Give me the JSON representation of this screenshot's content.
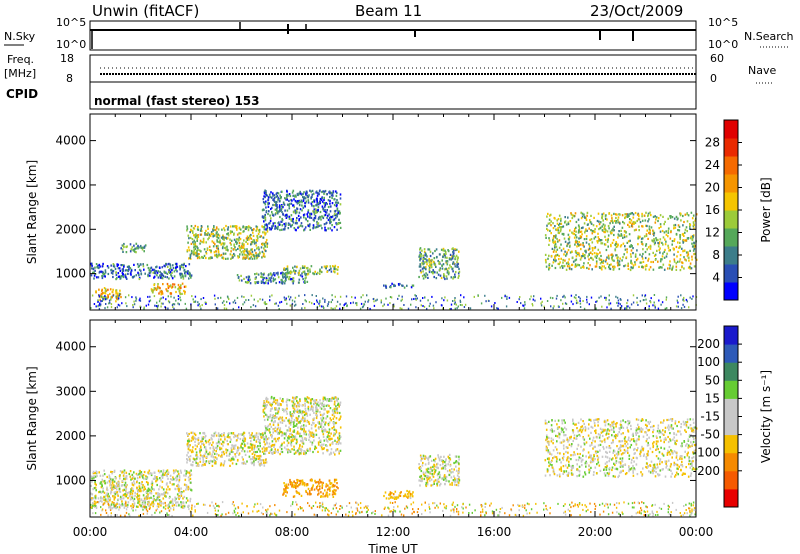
{
  "header": {
    "station": "Unwin (fitACF)",
    "beam": "Beam 11",
    "date": "23/Oct/2009"
  },
  "panels": {
    "sky_label": "N.Sky",
    "sky_ticks": [
      "10^5",
      "10^0"
    ],
    "search_label": "N.Search",
    "search_ticks": [
      "10^5",
      "10^0"
    ],
    "freq_label": "Freq.",
    "freq_unit": "[MHz]",
    "freq_ticks": [
      "18",
      "8"
    ],
    "nave_label": "Nave",
    "nave_ticks": [
      "60",
      "0"
    ],
    "cpid_label": "CPID",
    "cpid_text": "normal (fast stereo) 153"
  },
  "colors": {
    "power": [
      "#0000ff",
      "#2a4fb5",
      "#3c7d8a",
      "#55a85a",
      "#9ccb3a",
      "#f5c500",
      "#f59500",
      "#f56a00",
      "#ea2a00",
      "#e00000"
    ],
    "velocity": [
      "#1a1acc",
      "#2e5ab8",
      "#3d8860",
      "#66cc33",
      "#c8c8c8",
      "#c8c8c8",
      "#f5c000",
      "#f58a00",
      "#f55a00",
      "#e80000"
    ]
  },
  "chart_data": [
    {
      "type": "heatmap",
      "name": "power",
      "xlabel": "Time UT",
      "ylabel": "Slant Range [km]",
      "x_ticks": [
        "00:00",
        "04:00",
        "08:00",
        "12:00",
        "16:00",
        "20:00",
        "00:00"
      ],
      "xlim": [
        0,
        24
      ],
      "ylim": [
        180,
        4600
      ],
      "y_ticks": [
        1000,
        2000,
        3000,
        4000
      ],
      "colorbar_label": "Power [dB]",
      "colorbar_ticks": [
        4,
        8,
        12,
        16,
        20,
        24,
        28
      ],
      "colorbar_range": [
        0,
        32
      ],
      "regions": [
        {
          "t": [
            0.2,
            1.2
          ],
          "r": [
            400,
            700
          ],
          "p": 18
        },
        {
          "t": [
            0.0,
            4.0
          ],
          "r": [
            900,
            1250
          ],
          "p": 6
        },
        {
          "t": [
            1.2,
            2.2
          ],
          "r": [
            1500,
            1700
          ],
          "p": 10
        },
        {
          "t": [
            2.4,
            3.8
          ],
          "r": [
            550,
            800
          ],
          "p": 20
        },
        {
          "t": [
            3.8,
            7.0
          ],
          "r": [
            1350,
            2100
          ],
          "p": 14
        },
        {
          "t": [
            5.8,
            8.6
          ],
          "r": [
            800,
            1050
          ],
          "p": 8
        },
        {
          "t": [
            6.8,
            9.9
          ],
          "r": [
            2000,
            2900
          ],
          "p": 6
        },
        {
          "t": [
            7.6,
            9.8
          ],
          "r": [
            1000,
            1200
          ],
          "p": 12
        },
        {
          "t": [
            13.0,
            14.6
          ],
          "r": [
            900,
            1600
          ],
          "p": 10
        },
        {
          "t": [
            11.6,
            12.8
          ],
          "r": [
            700,
            800
          ],
          "p": 5
        },
        {
          "t": [
            18.0,
            24.0
          ],
          "r": [
            1100,
            2400
          ],
          "p": 14
        }
      ]
    },
    {
      "type": "heatmap",
      "name": "velocity",
      "xlabel": "Time UT",
      "ylabel": "Slant Range [km]",
      "x_ticks": [
        "00:00",
        "04:00",
        "08:00",
        "12:00",
        "16:00",
        "20:00",
        "00:00"
      ],
      "xlim": [
        0,
        24
      ],
      "ylim": [
        180,
        4600
      ],
      "y_ticks": [
        1000,
        2000,
        3000,
        4000
      ],
      "colorbar_label": "Velocity [m s⁻¹]",
      "colorbar_ticks": [
        200,
        100,
        50,
        15,
        -15,
        -50,
        -100,
        -200
      ],
      "regions": [
        {
          "t": [
            0.0,
            4.0
          ],
          "r": [
            400,
            1250
          ],
          "v": 0
        },
        {
          "t": [
            3.8,
            7.0
          ],
          "r": [
            1350,
            2100
          ],
          "v": -5
        },
        {
          "t": [
            6.8,
            9.9
          ],
          "r": [
            1600,
            2900
          ],
          "v": 0
        },
        {
          "t": [
            7.6,
            9.8
          ],
          "r": [
            650,
            1050
          ],
          "v": -60
        },
        {
          "t": [
            11.6,
            12.8
          ],
          "r": [
            600,
            800
          ],
          "v": -40
        },
        {
          "t": [
            13.0,
            14.6
          ],
          "r": [
            900,
            1600
          ],
          "v": 0
        },
        {
          "t": [
            18.0,
            24.0
          ],
          "r": [
            1100,
            2400
          ],
          "v": 0
        }
      ]
    }
  ]
}
